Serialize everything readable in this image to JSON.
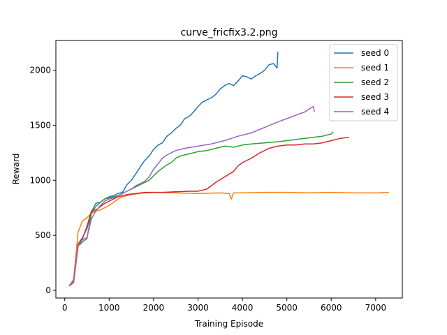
{
  "chart_data": {
    "type": "line",
    "title": "curve_fricfix3.2.png",
    "xlabel": "Training Episode",
    "ylabel": "Reward",
    "xlim": [
      -200,
      7600
    ],
    "ylim": [
      -70,
      2270
    ],
    "xticks": [
      0,
      1000,
      2000,
      3000,
      4000,
      5000,
      6000,
      7000
    ],
    "yticks": [
      0,
      500,
      1000,
      1500,
      2000
    ],
    "grid": false,
    "legend_position": "top-right",
    "series": [
      {
        "name": "seed 0",
        "color": "#1f77b4",
        "x": [
          100,
          200,
          300,
          400,
          500,
          600,
          700,
          800,
          900,
          1000,
          1100,
          1200,
          1300,
          1400,
          1500,
          1600,
          1700,
          1800,
          1900,
          2000,
          2100,
          2200,
          2300,
          2400,
          2500,
          2600,
          2700,
          2800,
          2900,
          3000,
          3100,
          3200,
          3300,
          3400,
          3500,
          3600,
          3700,
          3800,
          3900,
          4000,
          4100,
          4200,
          4300,
          4400,
          4500,
          4600,
          4700,
          4780,
          4800
        ],
        "y": [
          40,
          90,
          420,
          480,
          560,
          710,
          790,
          800,
          830,
          850,
          860,
          880,
          890,
          960,
          1000,
          1060,
          1120,
          1180,
          1220,
          1280,
          1320,
          1340,
          1400,
          1430,
          1470,
          1500,
          1560,
          1580,
          1620,
          1670,
          1710,
          1730,
          1750,
          1780,
          1830,
          1860,
          1880,
          1860,
          1900,
          1950,
          1940,
          1920,
          1950,
          1970,
          2000,
          2050,
          2060,
          2020,
          2170
        ]
      },
      {
        "name": "seed 1",
        "color": "#ff7f0e",
        "x": [
          100,
          200,
          300,
          400,
          500,
          600,
          700,
          800,
          900,
          1000,
          1100,
          1200,
          1300,
          1400,
          1500,
          1600,
          1700,
          1800,
          1900,
          2000,
          2500,
          3000,
          3500,
          3700,
          3750,
          3800,
          4000,
          4500,
          5000,
          5500,
          6000,
          6500,
          7000,
          7300
        ],
        "y": [
          40,
          100,
          530,
          630,
          660,
          700,
          720,
          730,
          750,
          770,
          800,
          830,
          850,
          860,
          870,
          875,
          880,
          885,
          885,
          890,
          885,
          880,
          885,
          880,
          830,
          885,
          885,
          890,
          890,
          885,
          890,
          885,
          885,
          890
        ]
      },
      {
        "name": "seed 2",
        "color": "#2ca02c",
        "x": [
          100,
          200,
          300,
          400,
          500,
          600,
          700,
          800,
          900,
          1000,
          1100,
          1200,
          1300,
          1400,
          1500,
          1600,
          1700,
          1800,
          1900,
          2000,
          2100,
          2200,
          2300,
          2400,
          2500,
          2600,
          2800,
          3000,
          3200,
          3400,
          3600,
          3800,
          4000,
          4200,
          4500,
          4800,
          5000,
          5200,
          5400,
          5600,
          5800,
          6000,
          6050
        ],
        "y": [
          40,
          70,
          400,
          440,
          470,
          700,
          760,
          800,
          830,
          840,
          850,
          860,
          880,
          900,
          920,
          940,
          960,
          980,
          1000,
          1040,
          1080,
          1110,
          1140,
          1160,
          1200,
          1220,
          1240,
          1260,
          1270,
          1290,
          1310,
          1300,
          1320,
          1330,
          1340,
          1350,
          1360,
          1370,
          1380,
          1390,
          1400,
          1420,
          1440
        ]
      },
      {
        "name": "seed 3",
        "color": "#d62728",
        "x": [
          100,
          200,
          300,
          400,
          500,
          600,
          700,
          800,
          900,
          1000,
          1100,
          1200,
          1400,
          1600,
          1800,
          2000,
          2200,
          2500,
          2800,
          3000,
          3200,
          3400,
          3600,
          3800,
          3900,
          4000,
          4200,
          4400,
          4600,
          4800,
          5000,
          5200,
          5400,
          5600,
          5800,
          6000,
          6200,
          6400
        ],
        "y": [
          40,
          80,
          420,
          470,
          580,
          720,
          730,
          760,
          790,
          810,
          830,
          850,
          870,
          880,
          890,
          890,
          890,
          895,
          900,
          900,
          920,
          980,
          1030,
          1080,
          1130,
          1160,
          1200,
          1250,
          1290,
          1310,
          1320,
          1320,
          1330,
          1330,
          1340,
          1360,
          1380,
          1390
        ]
      },
      {
        "name": "seed 4",
        "color": "#9467bd",
        "x": [
          100,
          200,
          300,
          400,
          500,
          600,
          700,
          800,
          900,
          1000,
          1100,
          1200,
          1300,
          1400,
          1500,
          1600,
          1700,
          1800,
          1900,
          2000,
          2100,
          2200,
          2300,
          2500,
          2700,
          3000,
          3300,
          3600,
          3900,
          4200,
          4500,
          4800,
          5000,
          5200,
          5400,
          5550,
          5600,
          5620
        ],
        "y": [
          40,
          70,
          400,
          460,
          480,
          650,
          720,
          770,
          810,
          830,
          840,
          860,
          880,
          900,
          920,
          950,
          970,
          990,
          1030,
          1100,
          1150,
          1200,
          1230,
          1270,
          1290,
          1310,
          1330,
          1360,
          1400,
          1430,
          1480,
          1530,
          1560,
          1590,
          1620,
          1660,
          1670,
          1620
        ]
      }
    ]
  }
}
